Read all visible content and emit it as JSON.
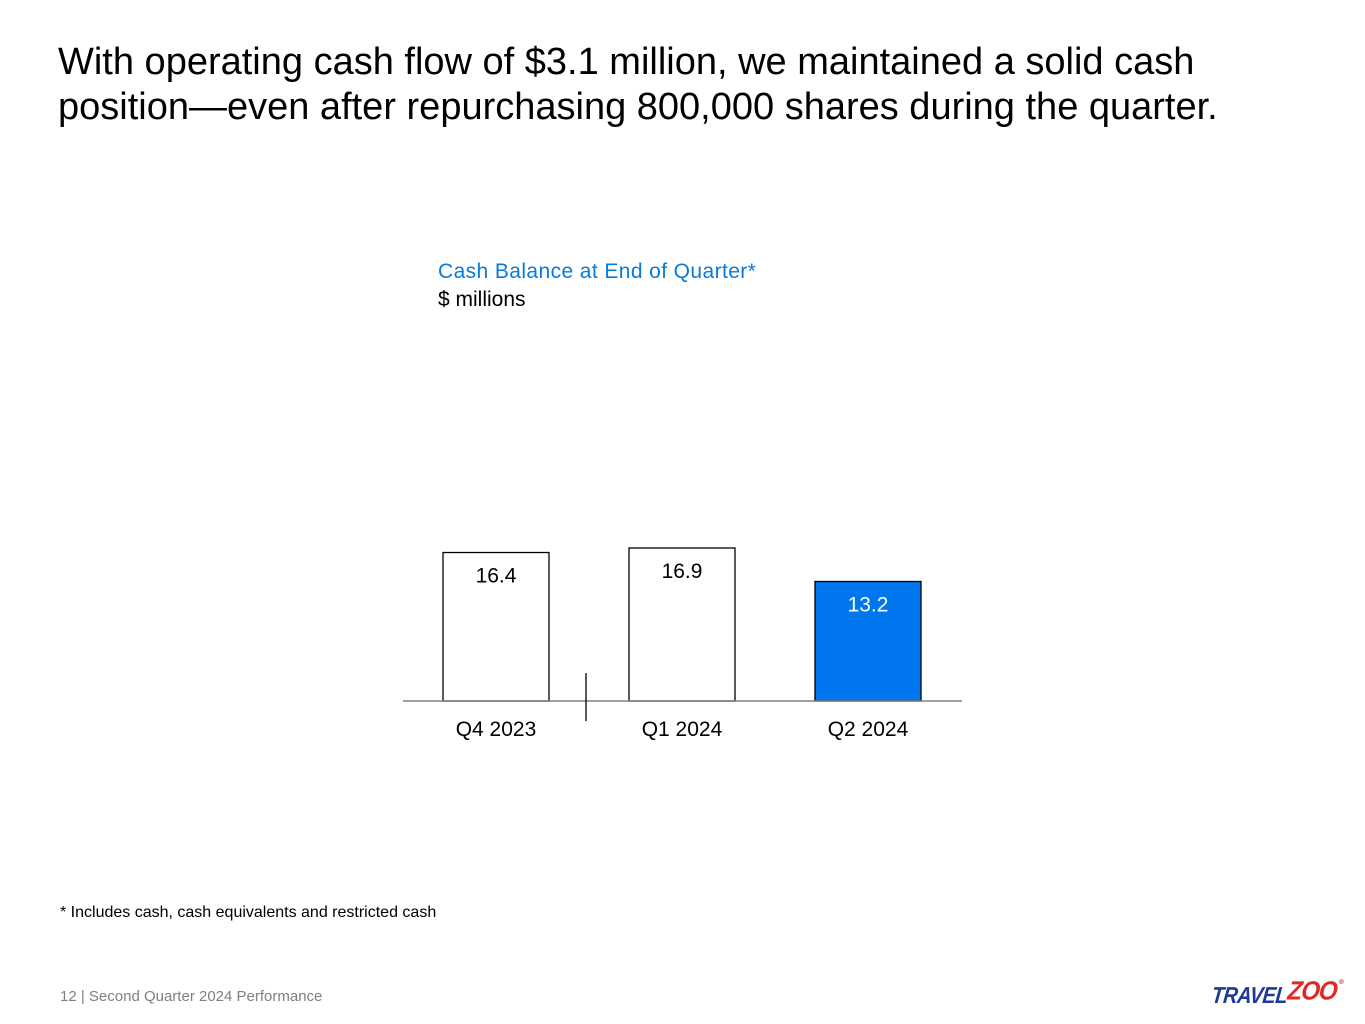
{
  "slide": {
    "title": "With operating cash flow of $3.1 million, we maintained a solid cash position—even after repurchasing 800,000 shares during the quarter.",
    "footnote": "* Includes cash, cash equivalents and restricted cash",
    "footer": "12 | Second Quarter 2024 Performance",
    "logo": {
      "text_main": "TRAVEL",
      "text_accent": "ZOO",
      "registered": "®"
    }
  },
  "colors": {
    "title_blue": "#0a7bd8",
    "highlight_bar": "#0077ee",
    "plain_bar": "#ffffff",
    "footer_gray": "#808080",
    "logo_blue": "#1f3a93",
    "logo_red": "#e32626"
  },
  "chart_data": {
    "type": "bar",
    "title": "Cash Balance at End of Quarter*",
    "subtitle": "$ millions",
    "categories": [
      "Q4 2023",
      "Q1 2024",
      "Q2 2024"
    ],
    "values": [
      16.4,
      16.9,
      13.2
    ],
    "data_labels": [
      "16.4",
      "16.9",
      "13.2"
    ],
    "highlighted": [
      false,
      false,
      true
    ],
    "separator_after_index": 0,
    "ylim": [
      0,
      16.9
    ],
    "grid": false,
    "legend": "none",
    "xlabel": "",
    "ylabel": ""
  }
}
